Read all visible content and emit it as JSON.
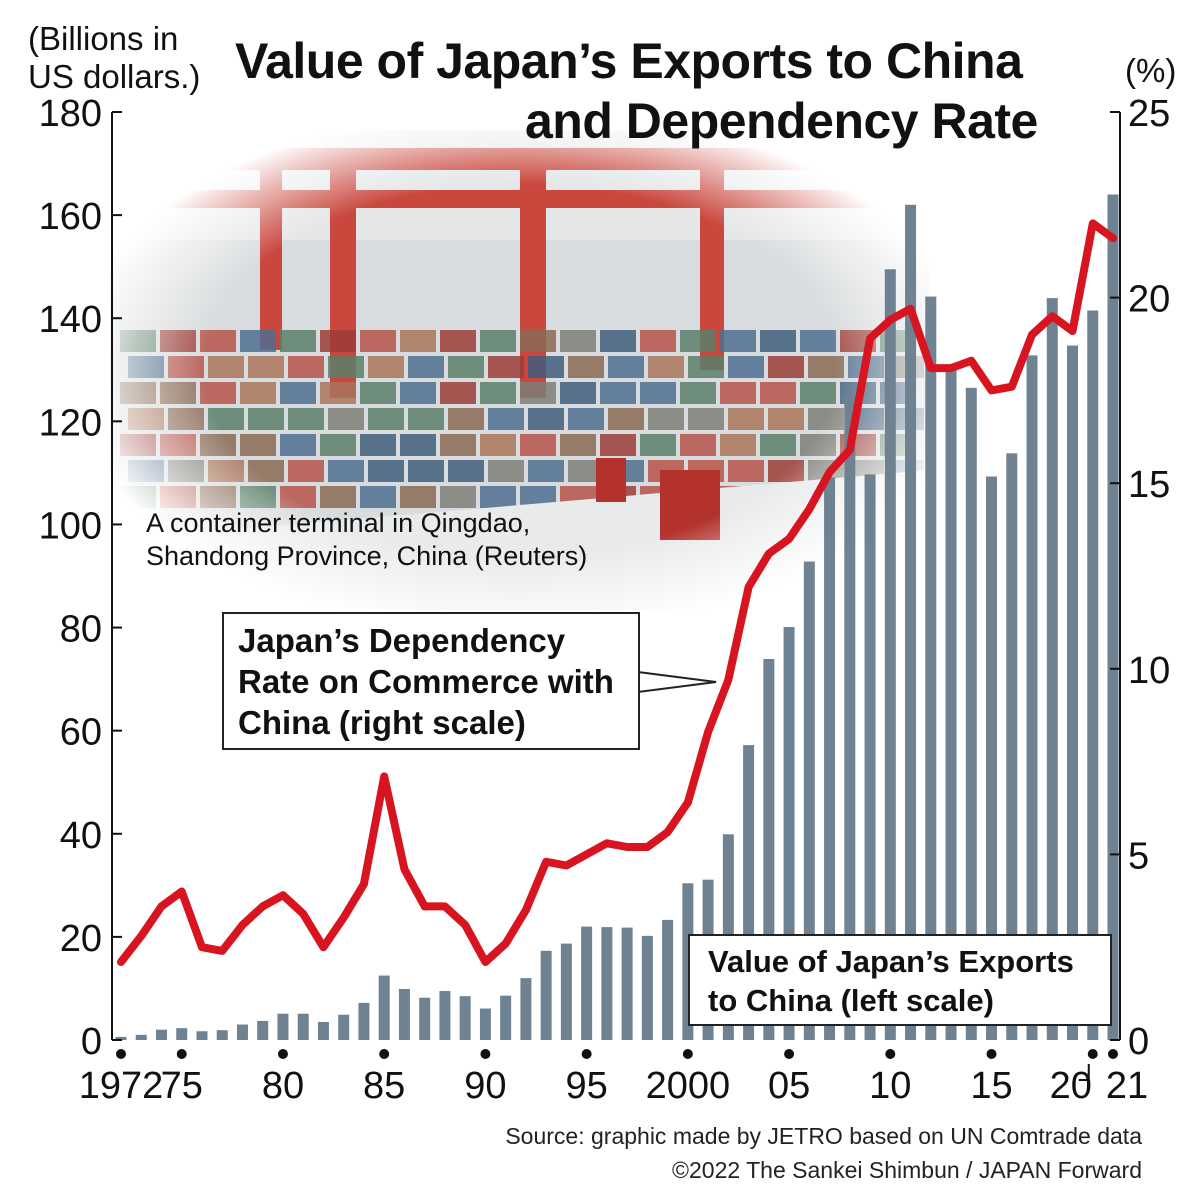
{
  "title": {
    "line1": "Value of Japan’s Exports to China",
    "line2": "and Dependency Rate"
  },
  "left_unit": "(Billions in US dollars.)",
  "right_unit": "(%)",
  "photo_caption": {
    "line1": "A container terminal in Qingdao,",
    "line2": "Shandong Province, China (Reuters)"
  },
  "callout_rate": [
    "Japan’s Dependency",
    "Rate on Commerce with",
    "China (right scale)"
  ],
  "callout_exports": [
    "Value of Japan’s Exports",
    "to China (left scale)"
  ],
  "source": "Source: graphic made by JETRO based on UN Comtrade data",
  "copyright": "©2022 The Sankei Shimbun / JAPAN Forward",
  "colors": {
    "bar": "#6f8292",
    "line": "#d7141f",
    "photo_red": "#c8443a",
    "axis": "#111111"
  },
  "chart_data": {
    "type": "bar",
    "x": [
      1972,
      1973,
      1974,
      1975,
      1976,
      1977,
      1978,
      1979,
      1980,
      1981,
      1982,
      1983,
      1984,
      1985,
      1986,
      1987,
      1988,
      1989,
      1990,
      1991,
      1992,
      1993,
      1994,
      1995,
      1996,
      1997,
      1998,
      1999,
      2000,
      2001,
      2002,
      2003,
      2004,
      2005,
      2006,
      2007,
      2008,
      2009,
      2010,
      2011,
      2012,
      2013,
      2014,
      2015,
      2016,
      2017,
      2018,
      2019,
      2020,
      2021
    ],
    "x_tick_labels": [
      {
        "x": 1972,
        "label": "1972"
      },
      {
        "x": 1975,
        "label": "75"
      },
      {
        "x": 1980,
        "label": "80"
      },
      {
        "x": 1985,
        "label": "85"
      },
      {
        "x": 1990,
        "label": "90"
      },
      {
        "x": 1995,
        "label": "95"
      },
      {
        "x": 2000,
        "label": "2000"
      },
      {
        "x": 2005,
        "label": "05"
      },
      {
        "x": 2010,
        "label": "10"
      },
      {
        "x": 2015,
        "label": "15"
      },
      {
        "x": 2020,
        "label": "20"
      },
      {
        "x": 2021,
        "label": "21"
      }
    ],
    "left_axis": {
      "ylim": [
        0,
        180
      ],
      "ticks": [
        0,
        20,
        40,
        60,
        80,
        100,
        120,
        140,
        160,
        180
      ]
    },
    "right_axis": {
      "ylim": [
        0,
        25
      ],
      "ticks": [
        0,
        5,
        10,
        15,
        20,
        25
      ]
    },
    "series": [
      {
        "name": "Value of Japan’s Exports to China (left scale)",
        "type": "bar",
        "axis": "left",
        "values": [
          0.6,
          1.0,
          2.0,
          2.3,
          1.7,
          1.9,
          3.0,
          3.7,
          5.1,
          5.1,
          3.5,
          4.9,
          7.2,
          12.5,
          9.9,
          8.2,
          9.5,
          8.5,
          6.1,
          8.6,
          12.0,
          17.3,
          18.7,
          22.0,
          21.9,
          21.8,
          20.2,
          23.3,
          30.4,
          31.1,
          39.9,
          57.2,
          73.9,
          80.1,
          92.8,
          109.1,
          124.9,
          109.7,
          149.5,
          162.0,
          144.2,
          129.9,
          126.5,
          109.3,
          113.8,
          132.8,
          143.9,
          134.7,
          141.5,
          164.0
        ]
      },
      {
        "name": "Japan’s Dependency Rate on Commerce with China (right scale)",
        "type": "line",
        "axis": "right",
        "values": [
          2.1,
          2.8,
          3.6,
          4.0,
          2.5,
          2.4,
          3.1,
          3.6,
          3.9,
          3.4,
          2.5,
          3.3,
          4.2,
          7.1,
          4.6,
          3.6,
          3.6,
          3.1,
          2.1,
          2.6,
          3.5,
          4.8,
          4.7,
          5.0,
          5.3,
          5.2,
          5.2,
          5.6,
          6.4,
          8.3,
          9.7,
          12.2,
          13.1,
          13.5,
          14.3,
          15.3,
          15.9,
          18.9,
          19.4,
          19.7,
          18.1,
          18.1,
          18.3,
          17.5,
          17.6,
          19.0,
          19.5,
          19.1,
          22.0,
          21.6
        ]
      }
    ]
  }
}
